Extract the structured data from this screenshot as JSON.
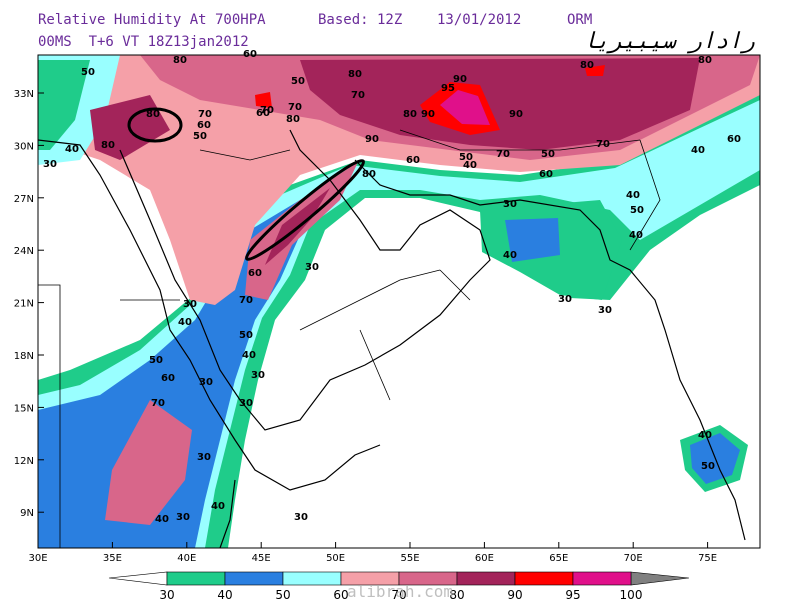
{
  "header": {
    "title": "Relative Humidity At 700HPA",
    "based": "Based: 12Z",
    "date": "13/01/2012",
    "model": "ORM",
    "line2": "00MS  T+6 VT 18Z13jan2012",
    "logo": "رادار سيبيريا"
  },
  "map": {
    "lat_labels": [
      "33N",
      "30N",
      "27N",
      "24N",
      "21N",
      "18N",
      "15N",
      "12N",
      "9N"
    ],
    "lon_labels": [
      "30E",
      "35E",
      "40E",
      "45E",
      "50E",
      "55E",
      "60E",
      "65E",
      "70E",
      "75E"
    ],
    "contour_labels": [
      50,
      80,
      60,
      50,
      80,
      70,
      90,
      95,
      80,
      90,
      90,
      80,
      80,
      70,
      70,
      80,
      60,
      70,
      60,
      50,
      80,
      40,
      30,
      80,
      90,
      80,
      60,
      50,
      40,
      70,
      50,
      60,
      70,
      40,
      60,
      40,
      50,
      30,
      40,
      40,
      30,
      60,
      70,
      30,
      40,
      50,
      40,
      30,
      50,
      60,
      30,
      70,
      30,
      40,
      50,
      30,
      40,
      40,
      30,
      30,
      30,
      30
    ]
  },
  "colorbar": {
    "levels": [
      30,
      40,
      50,
      60,
      70,
      80,
      90,
      95,
      100
    ]
  },
  "watermark": "alibrah.com"
}
